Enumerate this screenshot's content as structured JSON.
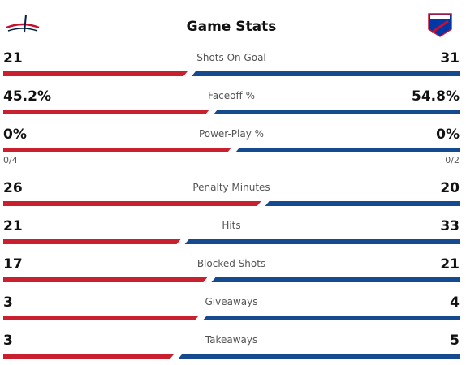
{
  "header": {
    "title": "Game Stats"
  },
  "stats": [
    {
      "label": "Shots On Goal",
      "away": 21,
      "home": 31
    },
    {
      "label": "Faceoff %",
      "away": {
        "value": 45.2,
        "label": "45.2%"
      },
      "home": {
        "value": 54.8,
        "label": "54.8%"
      }
    },
    {
      "label": "Power-Play %",
      "away": {
        "value": 0,
        "label": "0%"
      },
      "home": {
        "value": 0,
        "label": "0%"
      },
      "away_note": "0/4",
      "home_note": "0/2"
    },
    {
      "label": "Penalty Minutes",
      "away": 26,
      "home": 20
    },
    {
      "label": "Hits",
      "away": 21,
      "home": 33
    },
    {
      "label": "Blocked Shots",
      "away": 17,
      "home": 21
    },
    {
      "label": "Giveaways",
      "away": 3,
      "home": 4
    },
    {
      "label": "Takeaways",
      "away": 3,
      "home": 5
    }
  ]
}
